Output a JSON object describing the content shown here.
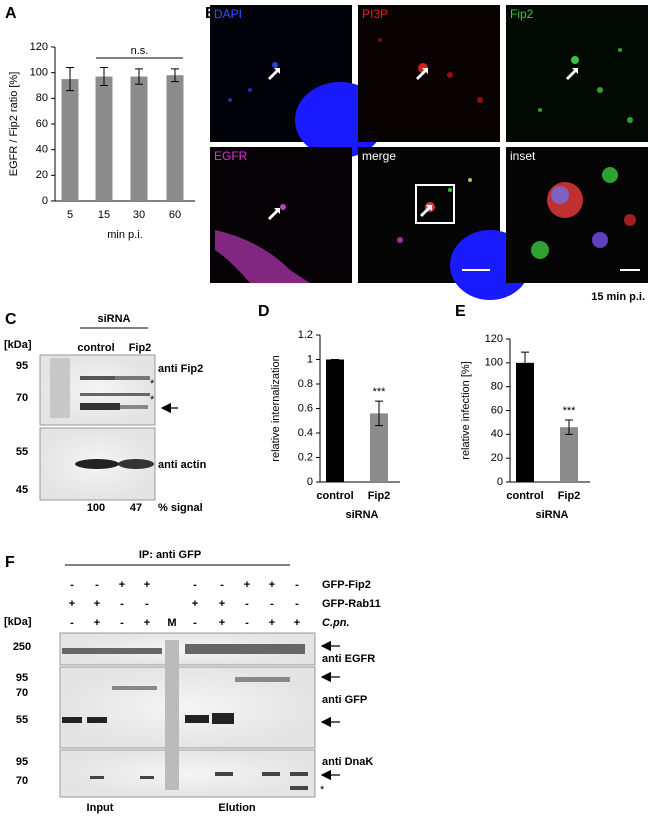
{
  "chart_data": [
    {
      "type": "bar",
      "label": "A",
      "y_label": "EGFR / Fip2 ratio [%]",
      "x_label": "min p.i.",
      "categories": [
        "5",
        "15",
        "30",
        "60"
      ],
      "values": [
        95,
        97,
        97,
        98
      ],
      "errors": [
        9,
        7,
        6,
        5
      ],
      "colors": [
        "#8c8c8c",
        "#8c8c8c",
        "#8c8c8c",
        "#8c8c8c"
      ],
      "ylim": [
        0,
        120
      ],
      "yticks": [
        0,
        20,
        40,
        60,
        80,
        100,
        120
      ],
      "annotation": "n.s."
    },
    {
      "type": "bar",
      "label": "D",
      "y_label": "relative internalization",
      "x_label": "siRNA",
      "categories": [
        "control",
        "Fip2"
      ],
      "values": [
        1,
        0.56
      ],
      "errors": [
        0,
        0.1
      ],
      "colors": [
        "#000000",
        "#8c8c8c"
      ],
      "ylim": [
        0,
        1.2
      ],
      "yticks": [
        0,
        0.2,
        0.4,
        0.6,
        0.8,
        1,
        1.2
      ],
      "annotation": "***"
    },
    {
      "type": "bar",
      "label": "E",
      "y_label": "relative infection [%]",
      "x_label": "siRNA",
      "categories": [
        "control",
        "Fip2"
      ],
      "values": [
        100,
        46
      ],
      "errors": [
        9,
        6
      ],
      "colors": [
        "#000000",
        "#8c8c8c"
      ],
      "ylim": [
        0,
        120
      ],
      "yticks": [
        0,
        20,
        40,
        60,
        80,
        100,
        120
      ],
      "annotation": "***"
    }
  ],
  "panel_b": {
    "label": "B",
    "channels": [
      "DAPI",
      "PI3P",
      "Fip2",
      "EGFR",
      "merge",
      "inset"
    ],
    "time": "15 min p.i."
  },
  "panel_c": {
    "label": "C",
    "header": "siRNA",
    "unit": "[kDa]",
    "lanes": [
      "control",
      "Fip2"
    ],
    "markers": [
      95,
      70,
      55,
      45
    ],
    "antibodies": [
      "anti Fip2",
      "anti actin"
    ],
    "asterisks": [
      "*",
      "*"
    ],
    "signal": [
      100,
      47
    ],
    "signal_label": "% signal"
  },
  "panel_f": {
    "label": "F",
    "title": "IP: anti GFP",
    "unit": "[kDa]",
    "marker_lane": "M",
    "conditions": [
      {
        "name": "GFP-Fip2",
        "signs": [
          "-",
          "-",
          "+",
          "+",
          "-",
          "-",
          "+",
          "+",
          "-"
        ]
      },
      {
        "name": "GFP-Rab11",
        "signs": [
          "+",
          "+",
          "-",
          "-",
          "+",
          "+",
          "-",
          "-",
          "-"
        ]
      },
      {
        "name": "C.pn.",
        "signs": [
          "-",
          "+",
          "-",
          "+",
          "-",
          "+",
          "-",
          "+",
          "+"
        ]
      }
    ],
    "blots": [
      {
        "antibody": "anti EGFR",
        "markers": [
          250
        ]
      },
      {
        "antibody": "anti GFP",
        "markers": [
          95,
          70,
          55
        ]
      },
      {
        "antibody": "anti DnaK",
        "markers": [
          95,
          70
        ]
      }
    ],
    "groups": [
      "Input",
      "Elution"
    ],
    "asterisk": "*"
  }
}
